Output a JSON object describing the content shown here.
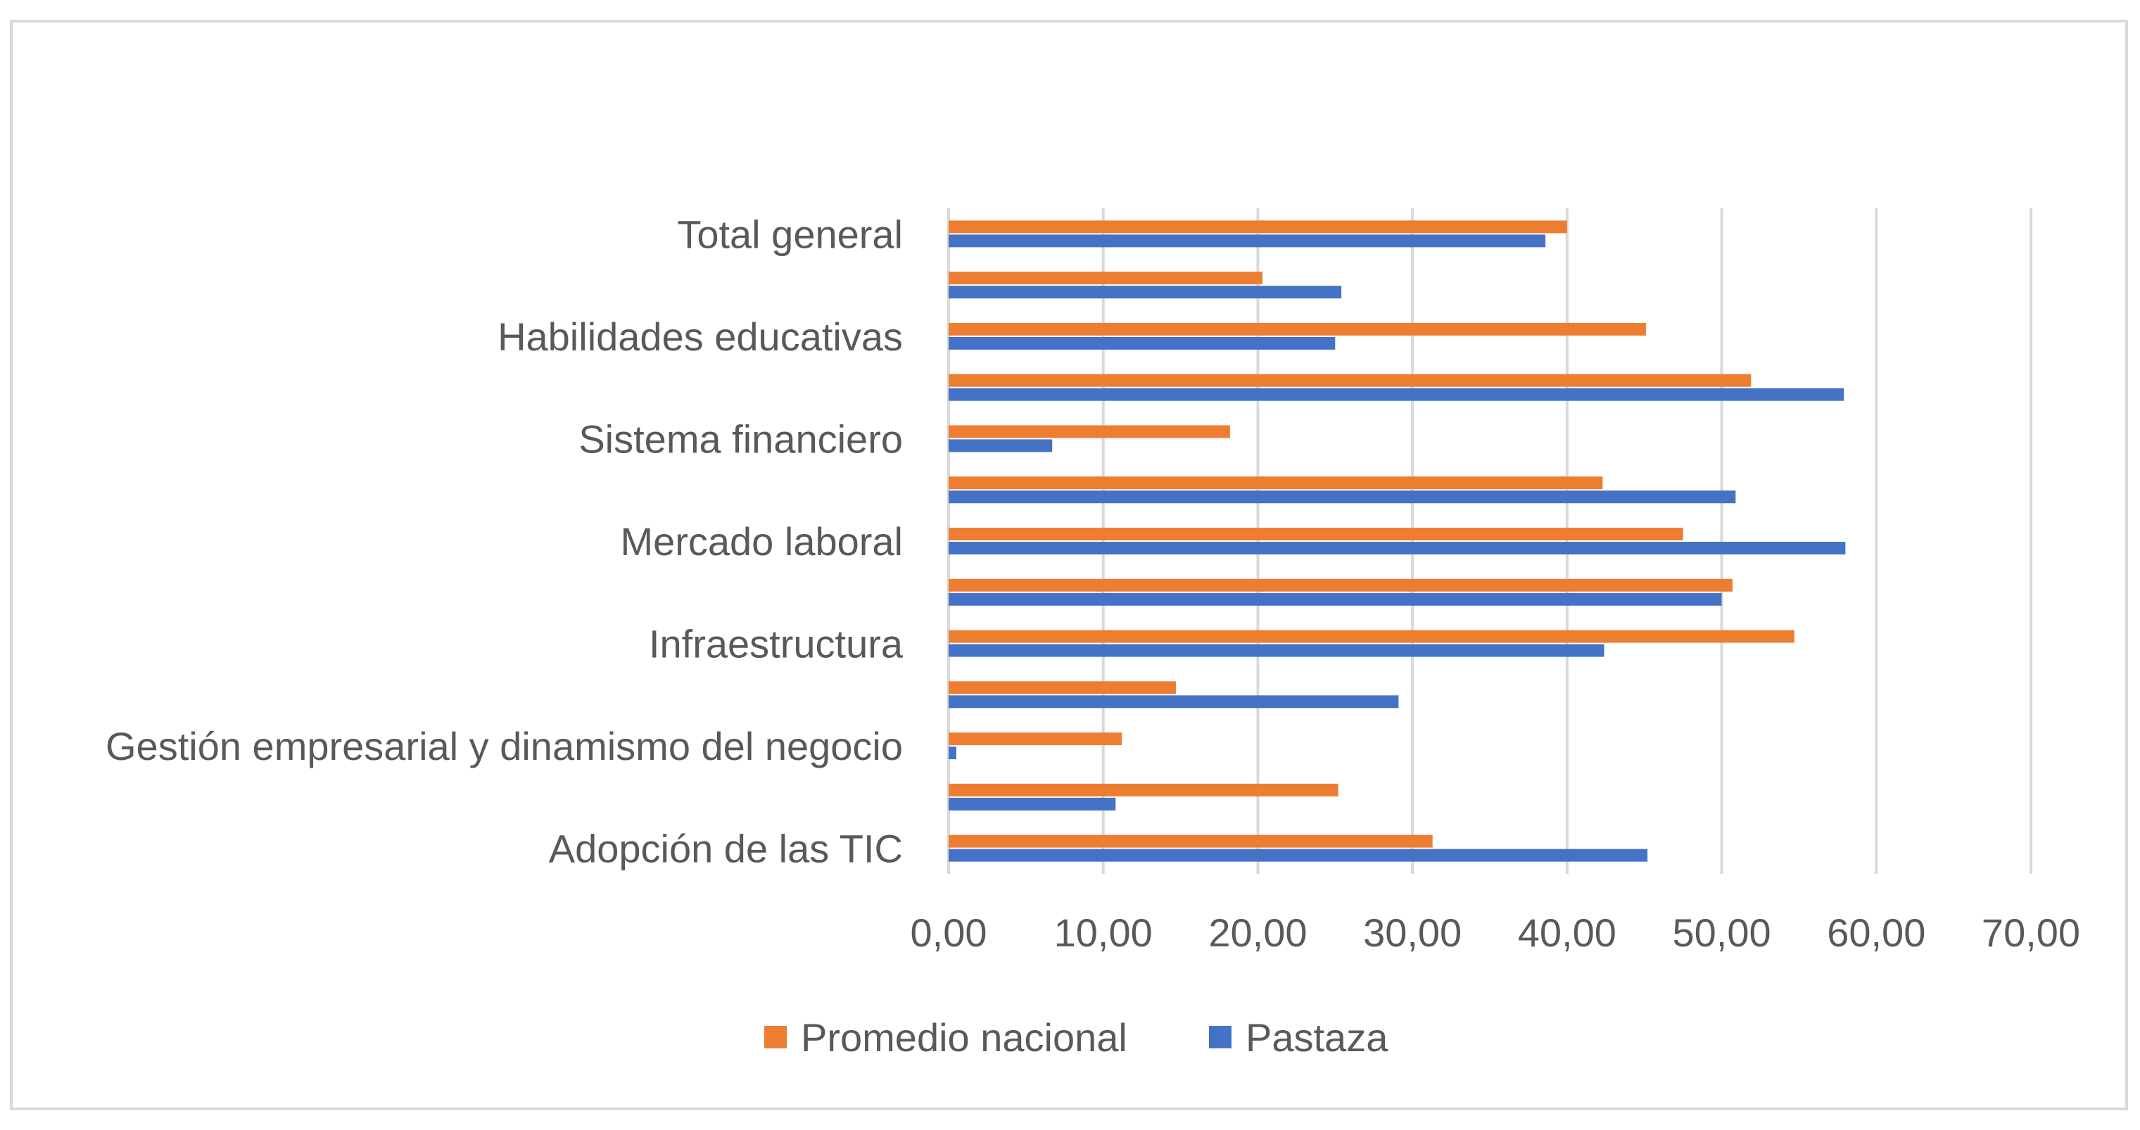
{
  "chart_data": {
    "type": "bar",
    "orientation": "horizontal",
    "categories": [
      "Adopción de las TIC",
      "",
      "Gestión empresarial y dinamismo del negocio",
      "",
      "Infraestructura",
      "",
      "Mercado laboral",
      "",
      "Sistema financiero",
      "",
      "Habilidades educativas",
      "",
      "Total general"
    ],
    "series": [
      {
        "name": "Promedio nacional",
        "color": "#ed7d31",
        "values": [
          31.3,
          25.2,
          11.2,
          14.7,
          54.7,
          50.7,
          47.5,
          42.3,
          18.2,
          51.9,
          45.1,
          20.3,
          40.0
        ]
      },
      {
        "name": "Pastaza",
        "color": "#4472c4",
        "values": [
          45.2,
          10.8,
          0.5,
          29.1,
          42.4,
          50.0,
          58.0,
          50.9,
          6.7,
          57.9,
          25.0,
          25.4,
          38.6
        ]
      }
    ],
    "xlim": [
      0,
      70
    ],
    "xticks": [
      "0,00",
      "10,00",
      "20,00",
      "30,00",
      "40,00",
      "50,00",
      "60,00",
      "70,00"
    ],
    "grid": true,
    "legend": "bottom"
  }
}
